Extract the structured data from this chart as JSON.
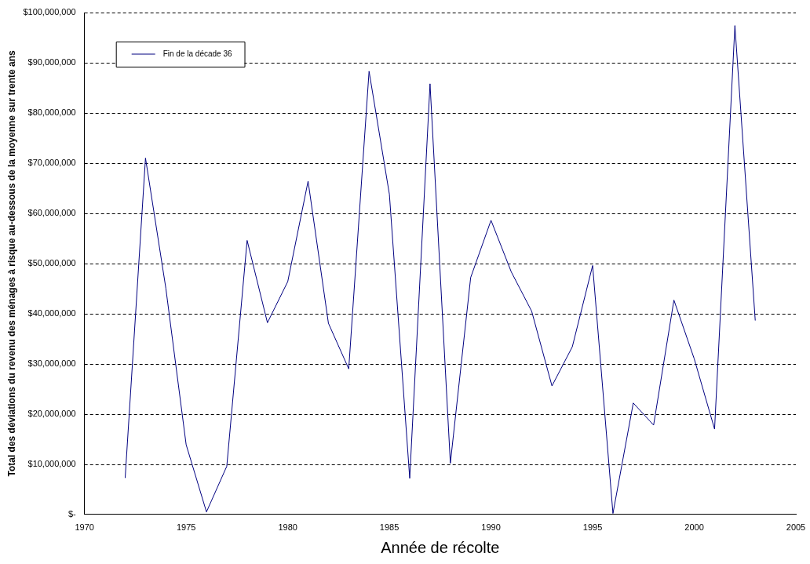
{
  "chart_data": {
    "type": "line",
    "xlabel": "Année de récolte",
    "ylabel": "Total des déviations du revenu des ménages à risque au-dessous de la moyenne sur trente ans",
    "x": [
      1972,
      1973,
      1974,
      1975,
      1976,
      1977,
      1978,
      1979,
      1980,
      1981,
      1982,
      1983,
      1984,
      1985,
      1986,
      1987,
      1988,
      1989,
      1990,
      1991,
      1992,
      1993,
      1994,
      1995,
      1996,
      1997,
      1998,
      1999,
      2000,
      2001,
      2002,
      2003
    ],
    "series": [
      {
        "name": "Fin de la décade 36",
        "color": "#000080",
        "values": [
          7300000,
          71000000,
          45100000,
          13900000,
          500000,
          9600000,
          54600000,
          38200000,
          46400000,
          66400000,
          38100000,
          29000000,
          88300000,
          63800000,
          7200000,
          85800000,
          10200000,
          47200000,
          58600000,
          48300000,
          40500000,
          25600000,
          33400000,
          49600000,
          200000,
          22200000,
          17800000,
          42700000,
          31000000,
          17000000,
          97400000,
          38700000
        ]
      }
    ],
    "xlim": [
      1970,
      2005
    ],
    "xticks": [
      1970,
      1975,
      1980,
      1985,
      1990,
      1995,
      2000,
      2005
    ],
    "ylim": [
      0,
      100000000
    ],
    "yticks": [
      {
        "value": 0,
        "label": "$-"
      },
      {
        "value": 10000000,
        "label": "$10,000,000"
      },
      {
        "value": 20000000,
        "label": "$20,000,000"
      },
      {
        "value": 30000000,
        "label": "$30,000,000"
      },
      {
        "value": 40000000,
        "label": "$40,000,000"
      },
      {
        "value": 50000000,
        "label": "$50,000,000"
      },
      {
        "value": 60000000,
        "label": "$60,000,000"
      },
      {
        "value": 70000000,
        "label": "$70,000,000"
      },
      {
        "value": 80000000,
        "label": "$80,000,000"
      },
      {
        "value": 90000000,
        "label": "$90,000,000"
      },
      {
        "value": 100000000,
        "label": "$100,000,000"
      }
    ],
    "grid": "y",
    "legend": "top left",
    "line_style": "solid"
  }
}
